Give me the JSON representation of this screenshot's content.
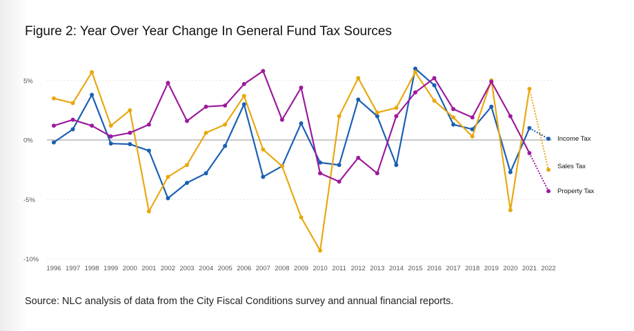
{
  "chart_data": {
    "type": "line",
    "title": "Figure 2: Year Over Year Change In General Fund Tax Sources",
    "source": "Source: NLC analysis of data from the City Fiscal Conditions survey and annual financial reports.",
    "xlabel": "",
    "ylabel": "",
    "ylim": [
      -10,
      6.5
    ],
    "yticks": [
      5,
      0,
      -5,
      -10
    ],
    "ytick_labels": [
      "5%",
      "0%",
      "-5%",
      "-10%"
    ],
    "grid": true,
    "legend_placement": "right (end-of-line labels)",
    "categories": [
      "1996",
      "1997",
      "1998",
      "1999",
      "2000",
      "2001",
      "2002",
      "2003",
      "2004",
      "2005",
      "2006",
      "2007",
      "2008",
      "2009",
      "2010",
      "2011",
      "2012",
      "2013",
      "2014",
      "2015",
      "2016",
      "2017",
      "2018",
      "2019",
      "2020",
      "2021",
      "2022"
    ],
    "projected_from_index": 25,
    "series": [
      {
        "name": "Income Tax",
        "color": "#1a5fb4",
        "values": [
          -0.2,
          0.9,
          3.8,
          -0.3,
          -0.35,
          -0.9,
          -4.9,
          -3.6,
          -2.8,
          -0.5,
          3.0,
          -3.1,
          -2.2,
          1.4,
          -1.9,
          -2.1,
          3.4,
          2.0,
          -2.1,
          6.0,
          4.6,
          1.3,
          0.9,
          2.8,
          -2.7,
          1.0,
          0.1
        ]
      },
      {
        "name": "Sales Tax",
        "color": "#e8a810",
        "values": [
          3.5,
          3.1,
          5.7,
          1.2,
          2.5,
          -6.0,
          -3.1,
          -2.1,
          0.6,
          1.3,
          3.7,
          -0.8,
          -2.2,
          -6.5,
          -9.3,
          2.0,
          5.2,
          2.3,
          2.7,
          5.7,
          3.3,
          1.9,
          0.3,
          5.0,
          -5.9,
          4.3,
          -2.5
        ]
      },
      {
        "name": "Property Tax",
        "color": "#9c1a9c",
        "values": [
          1.2,
          1.7,
          1.2,
          0.3,
          0.6,
          1.3,
          4.8,
          1.6,
          2.8,
          2.9,
          4.7,
          5.8,
          1.7,
          4.4,
          -2.8,
          -3.5,
          -1.5,
          -2.8,
          2.0,
          4.0,
          5.2,
          2.6,
          1.9,
          4.9,
          2.0,
          -1.1,
          -4.3
        ]
      }
    ]
  }
}
